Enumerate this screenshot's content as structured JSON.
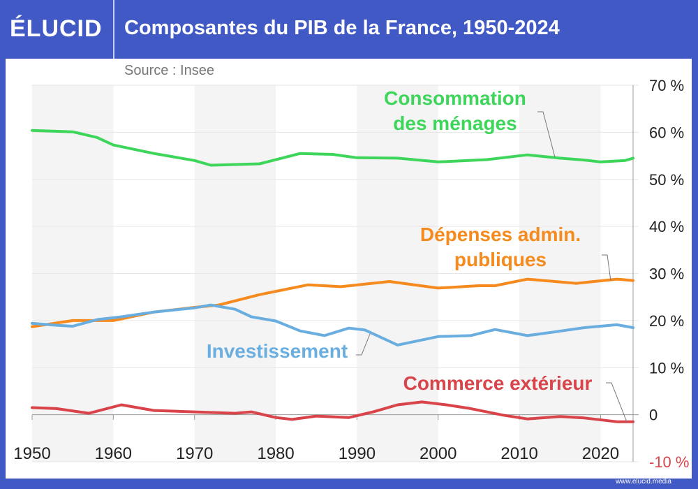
{
  "header": {
    "logo": "ÉLUCID",
    "title": "Composantes du PIB de la France, 1950-2024",
    "source": "Source : Insee",
    "footer": "www.elucid.media"
  },
  "colors": {
    "frame": "#4159c5",
    "consommation": "#3dd65a",
    "depenses": "#f58a1f",
    "investissement": "#6aaee0",
    "commerce": "#d9434a"
  },
  "chart_data": {
    "type": "line",
    "title": "Composantes du PIB de la France, 1950-2024",
    "xlim": [
      1950,
      2024
    ],
    "ylim": [
      -10,
      70
    ],
    "x_ticks": [
      "1950",
      "1960",
      "1970",
      "1980",
      "1990",
      "2000",
      "2010",
      "2020"
    ],
    "y_ticks": [
      "70 %",
      "60 %",
      "50 %",
      "40 %",
      "30 %",
      "20 %",
      "10 %",
      "0",
      "-10 %"
    ],
    "grid": true,
    "series": [
      {
        "name": "Consommation des ménages",
        "label_lines": [
          "Consommation",
          "des ménages"
        ],
        "color": "#3dd65a",
        "x": [
          1950,
          1955,
          1958,
          1960,
          1965,
          1970,
          1972,
          1978,
          1983,
          1987,
          1990,
          1995,
          2000,
          2006,
          2011,
          2015,
          2018,
          2020,
          2023,
          2024
        ],
        "y": [
          60.4,
          60.1,
          58.9,
          57.3,
          55.5,
          54.0,
          53.0,
          53.3,
          55.5,
          55.3,
          54.6,
          54.5,
          53.7,
          54.2,
          55.2,
          54.5,
          54.1,
          53.7,
          54.0,
          54.5
        ]
      },
      {
        "name": "Dépenses admin. publiques",
        "label_lines": [
          "Dépenses admin.",
          "publiques"
        ],
        "color": "#f58a1f",
        "x": [
          1950,
          1955,
          1960,
          1965,
          1970,
          1973,
          1978,
          1984,
          1988,
          1994,
          2000,
          2005,
          2007,
          2011,
          2017,
          2022,
          2024
        ],
        "y": [
          18.7,
          20.0,
          20.0,
          21.8,
          22.8,
          23.3,
          25.5,
          27.6,
          27.2,
          28.3,
          26.9,
          27.4,
          27.4,
          28.8,
          27.9,
          28.8,
          28.5
        ]
      },
      {
        "name": "Investissement",
        "label_lines": [
          "Investissement"
        ],
        "color": "#6aaee0",
        "x": [
          1950,
          1953,
          1955,
          1958,
          1961,
          1965,
          1970,
          1972,
          1975,
          1977,
          1980,
          1983,
          1986,
          1989,
          1991,
          1995,
          2000,
          2004,
          2007,
          2011,
          2014,
          2018,
          2022,
          2024
        ],
        "y": [
          19.4,
          19.0,
          18.8,
          20.2,
          20.8,
          21.8,
          22.7,
          23.3,
          22.4,
          20.8,
          19.9,
          17.8,
          16.8,
          18.4,
          18.0,
          14.8,
          16.6,
          16.8,
          18.1,
          16.8,
          17.5,
          18.5,
          19.1,
          18.5
        ]
      },
      {
        "name": "Commerce extérieur",
        "label_lines": [
          "Commerce extérieur"
        ],
        "color": "#d9434a",
        "x": [
          1950,
          1953,
          1957,
          1961,
          1965,
          1970,
          1975,
          1977,
          1980,
          1982,
          1985,
          1989,
          1992,
          1995,
          1998,
          2001,
          2004,
          2008,
          2011,
          2015,
          2018,
          2022,
          2024
        ],
        "y": [
          1.5,
          1.3,
          0.3,
          2.1,
          0.9,
          0.6,
          0.3,
          0.6,
          -0.6,
          -1.0,
          -0.3,
          -0.6,
          0.6,
          2.1,
          2.7,
          2.1,
          1.3,
          -0.1,
          -0.9,
          -0.4,
          -0.7,
          -1.5,
          -1.5
        ]
      }
    ]
  }
}
